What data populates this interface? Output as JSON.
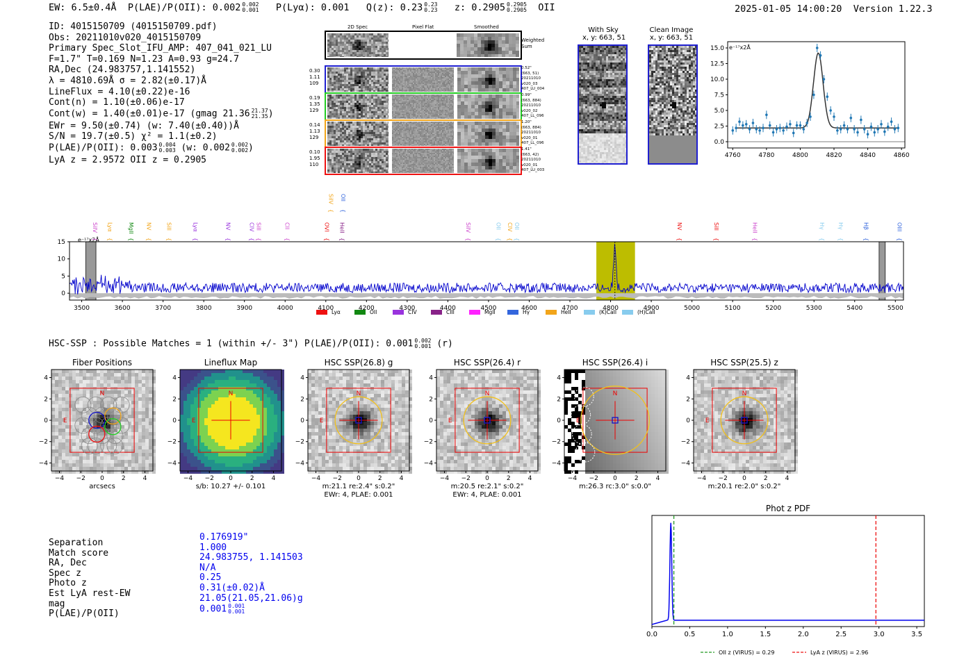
{
  "header": {
    "ew": "EW: 6.5±0.4Å",
    "plae": "P(LAE)/P(OII): 0.002",
    "plae_hi": "0.002",
    "plae_lo": "0.001",
    "plya": "P(Lyα): 0.001",
    "qz": "Q(z): 0.23",
    "qz_hi": "0.23",
    "qz_lo": "0.23",
    "z": "z: 0.2905",
    "z_hi": "0.2905",
    "z_lo": "0.2905",
    "z_line": "OII",
    "datetime": "2025-01-05 14:00:20",
    "version": "Version 1.22.3"
  },
  "info": {
    "id": "ID: 4015150709 (4015150709.pdf)",
    "obs": "Obs: 20211010v020_4015150709",
    "primary": "Primary Spec_Slot_IFU_AMP: 407_041_021_LU",
    "params": "F=1.7\"  T=0.169  N=1.23  A=0.93  g=24.7",
    "radec": "RA,Dec (24.983757,1.141552)",
    "lambda": "λ = 4810.69Å  σ = 2.82(±0.17)Å",
    "lineflux": "LineFlux = 4.10(±0.22)e-16",
    "contn": "Cont(n) = 1.10(±0.06)e-17",
    "contw": "Cont(w) = 1.40(±0.01)e-17 (gmag 21.36",
    "contw_hi": "21.37",
    "contw_lo": "21.35",
    "contw_end": ")",
    "ewr": "EWr = 9.50(±0.74) (w: 7.40(±0.40))Å",
    "sn": "S/N = 19.7(±0.5)  χ² = 1.1(±0.2)",
    "plae2": "P(LAE)/P(OII): 0.003",
    "plae2_hi": "0.004",
    "plae2_lo": "0.003",
    "plae2_w": "(w: 0.002",
    "plae2_w_hi": "0.002",
    "plae2_w_lo": "0.002",
    "plae2_end": ")",
    "lyaz": "LyA z = 2.9572  OII z = 0.2905"
  },
  "cutouts": {
    "col_labels": [
      "2D Spec",
      "Pixel Flat",
      "Smoothed"
    ],
    "weighted": "Weighted",
    "sum": "Sum",
    "rows": [
      {
        "color": "#1f1fd0",
        "left": [
          "0.30",
          "1.11",
          "109"
        ],
        "right": [
          "0.52\"",
          "(663, 51)",
          "20211010",
          "v020_03",
          "407_LU_004"
        ]
      },
      {
        "color": "#22cc22",
        "left": [
          "0.19",
          "1.35",
          "129"
        ],
        "right": [
          "0.99\"",
          "(663, 884)",
          "20211010",
          "v020_02",
          "407_LL_096"
        ]
      },
      {
        "color": "#f2a51a",
        "left": [
          "0.14",
          "1.13",
          "129"
        ],
        "right": [
          "1.20\"",
          "(663, 884)",
          "20211010",
          "v020_01",
          "407_LL_096"
        ]
      },
      {
        "color": "#ee1111",
        "left": [
          "0.10",
          "1.95",
          "110"
        ],
        "right": [
          "1.41\"",
          "(663, 42)",
          "20211010",
          "v020_01",
          "407_LU_003"
        ]
      }
    ]
  },
  "sky": {
    "with_sky": "With Sky",
    "with_sky_xy": "x, y: 663, 51",
    "clean": "Clean Image",
    "clean_xy": "x, y: 663, 51"
  },
  "line_fit": {
    "unit": "e⁻¹⁷x2Å",
    "yticks": [
      "0.0",
      "2.5",
      "5.0",
      "7.5",
      "10.0",
      "12.5",
      "15.0"
    ],
    "xticks": [
      "4760",
      "4780",
      "4800",
      "4820",
      "4840",
      "4860"
    ]
  },
  "spectrum": {
    "unit": "e⁻¹⁷x2Å",
    "yticks": [
      "0",
      "5",
      "10",
      "15"
    ],
    "xticks": [
      "3500",
      "3600",
      "3700",
      "3800",
      "3900",
      "4000",
      "4100",
      "4200",
      "4300",
      "4400",
      "4500",
      "4600",
      "4700",
      "4800",
      "4900",
      "5000",
      "5100",
      "5200",
      "5300",
      "5400",
      "5500"
    ],
    "lines": [
      {
        "name": "SiIV",
        "x": 3523,
        "color": "#cc44cc"
      },
      {
        "name": "Lyα",
        "x": 3560,
        "color": "#f2a51a"
      },
      {
        "name": "MgII",
        "x": 3612,
        "color": "#118811"
      },
      {
        "name": "NV",
        "x": 3655,
        "color": "#f2a51a"
      },
      {
        "name": "SiII",
        "x": 3705,
        "color": "#f2a51a"
      },
      {
        "name": "Lyα",
        "x": 3770,
        "color": "#9933dd"
      },
      {
        "name": "NV",
        "x": 3850,
        "color": "#9933dd"
      },
      {
        "name": "CIV",
        "x": 3908,
        "color": "#9933dd"
      },
      {
        "name": "SiII",
        "x": 3925,
        "color": "#cc44cc"
      },
      {
        "name": "CII",
        "x": 3995,
        "color": "#cc44cc"
      },
      {
        "name": "OVI",
        "x": 4093,
        "color": "#ee1111"
      },
      {
        "name": "HeII",
        "x": 4130,
        "color": "#882288"
      },
      {
        "name": "SiIV",
        "x": 4103,
        "color": "#f2a51a"
      },
      {
        "name": "OII",
        "x": 4133,
        "color": "#3366dd"
      },
      {
        "name": "SiIV",
        "x": 4440,
        "color": "#cc44cc"
      },
      {
        "name": "OII",
        "x": 4515,
        "color": "#88ccee"
      },
      {
        "name": "CIV",
        "x": 4543,
        "color": "#f2a51a"
      },
      {
        "name": "OII",
        "x": 4560,
        "color": "#88ccee"
      },
      {
        "name": "NV",
        "x": 4960,
        "color": "#ee1111"
      },
      {
        "name": "SiII",
        "x": 5050,
        "color": "#ee1111"
      },
      {
        "name": "HeII",
        "x": 5145,
        "color": "#cc44cc"
      },
      {
        "name": "Hγ",
        "x": 5310,
        "color": "#88ccee"
      },
      {
        "name": "Hγ",
        "x": 5356,
        "color": "#88ccee"
      },
      {
        "name": "Hβ",
        "x": 5418,
        "color": "#3366dd"
      },
      {
        "name": "OIII",
        "x": 5500,
        "color": "#3366dd"
      }
    ],
    "legend": [
      {
        "label": "Lyα",
        "color": "#ee1111"
      },
      {
        "label": "OII",
        "color": "#118811"
      },
      {
        "label": "CIV",
        "color": "#9933dd"
      },
      {
        "label": "CIII",
        "color": "#882288"
      },
      {
        "label": "MgII",
        "color": "#ff22ff"
      },
      {
        "label": "Hγ",
        "color": "#3366dd"
      },
      {
        "label": "HeII",
        "color": "#f2a51a"
      },
      {
        "label": "(K)CaII",
        "color": "#88ccee"
      },
      {
        "label": "(H)CaII",
        "color": "#88ccee"
      }
    ]
  },
  "hsc": {
    "title": "HSC-SSP : Possible Matches = 1 (within +/- 3\")  P(LAE)/P(OII): 0.001",
    "title_hi": "0.002",
    "title_lo": "0.001",
    "title_end": "(r)",
    "panels": [
      {
        "title": "Fiber Positions",
        "caption1": "arcsecs",
        "caption2": ""
      },
      {
        "title": "Lineflux Map",
        "caption1": "s/b: 10.27 +/- 0.101",
        "caption2": ""
      },
      {
        "title": "HSC SSP(26.8) g",
        "caption1": "m:21.1  re:2.4\"  s:0.2\"",
        "caption2": "EWr: 4, PLAE: 0.001"
      },
      {
        "title": "HSC SSP(26.4) r",
        "caption1": "m:20.5  re:2.1\"  s:0.2\"",
        "caption2": "EWr: 4, PLAE: 0.001"
      },
      {
        "title": "HSC SSP(26.4) i",
        "caption1": "m:26.3 rc:3.0\"  s:0.0\"",
        "caption2": ""
      },
      {
        "title": "HSC SSP(25.5) z",
        "caption1": "m:20.1  re:2.0\"  s:0.2\"",
        "caption2": ""
      }
    ],
    "axis_ticks": [
      "−4",
      "−2",
      "0",
      "2",
      "4"
    ],
    "north": "N",
    "east": "E"
  },
  "match": {
    "labels": [
      "Separation",
      "Match score",
      "RA, Dec",
      "Spec z",
      "Photo z",
      "Est LyA rest-EW",
      "mag",
      "P(LAE)/P(OII)"
    ],
    "values": [
      "0.176919\"",
      "1.000",
      "24.983755, 1.141503",
      "N/A",
      "0.25",
      "0.31(±0.02)Å",
      "21.05(21.05,21.06)g",
      "0.001"
    ],
    "plae_hi": "0.001",
    "plae_lo": "0.001"
  },
  "photz": {
    "title": "Phot z PDF",
    "xticks": [
      "0.0",
      "0.5",
      "1.0",
      "1.5",
      "2.0",
      "2.5",
      "3.0",
      "3.5"
    ],
    "legend_oii": "OII z (VIRUS) = 0.29",
    "legend_lya": "LyA z (VIRUS) = 2.96",
    "oii_z": 0.29,
    "lya_z": 2.96,
    "xlim": [
      0,
      3.6
    ]
  },
  "chart_data": [
    {
      "type": "scatter",
      "title": "",
      "ylabel": "e-17x2Å",
      "xlim": [
        4757,
        4862
      ],
      "ylim": [
        -1,
        16
      ],
      "x": [
        4760,
        4762,
        4764,
        4766,
        4768,
        4770,
        4772,
        4774,
        4776,
        4778,
        4780,
        4782,
        4784,
        4786,
        4788,
        4790,
        4792,
        4794,
        4796,
        4798,
        4800,
        4802,
        4804,
        4806,
        4808,
        4810,
        4812,
        4814,
        4816,
        4818,
        4820,
        4822,
        4824,
        4826,
        4828,
        4830,
        4832,
        4834,
        4836,
        4838,
        4840,
        4842,
        4844,
        4846,
        4848,
        4850,
        4852,
        4854,
        4856,
        4858
      ],
      "y": [
        1.8,
        2.2,
        3.2,
        2.6,
        2.8,
        2.0,
        3.0,
        2.0,
        1.8,
        2.2,
        4.3,
        2.6,
        1.5,
        2.0,
        2.2,
        1.8,
        2.4,
        2.8,
        1.4,
        2.6,
        2.6,
        2.0,
        3.0,
        4.0,
        7.5,
        15.0,
        13.8,
        10.0,
        7.2,
        5.0,
        4.0,
        1.8,
        2.0,
        2.6,
        2.0,
        3.8,
        2.0,
        1.5,
        3.5,
        2.0,
        1.2,
        2.4,
        1.5,
        2.0,
        2.8,
        1.6,
        2.4,
        3.2,
        2.0,
        2.2
      ],
      "fit_center": 4810.69,
      "fit_sigma": 2.82,
      "fit_amp": 12.0,
      "fit_cont": 2.2
    },
    {
      "type": "line",
      "title": "",
      "ylabel": "e-17x2Å",
      "xlim": [
        3470,
        5520
      ],
      "ylim": [
        -2,
        15
      ],
      "highlight": [
        4765,
        4860
      ],
      "emission_center": 4810.69
    },
    {
      "type": "line",
      "title": "Phot z PDF",
      "xlim": [
        0,
        3.6
      ],
      "ylim": [
        0,
        1.05
      ],
      "peak_z": 0.25
    }
  ]
}
